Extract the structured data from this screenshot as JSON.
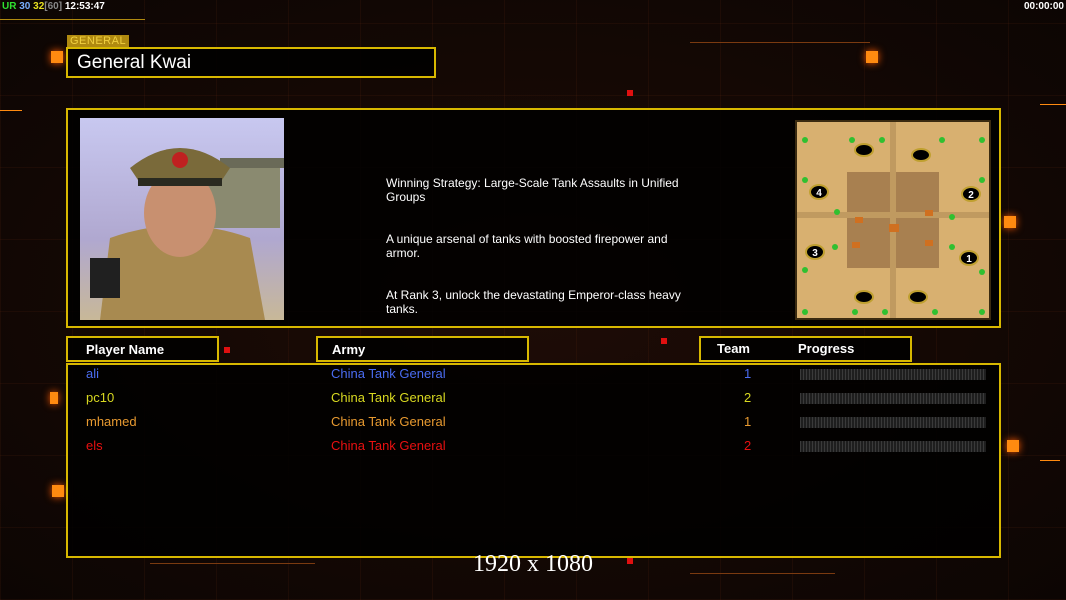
{
  "hud": {
    "ur": "UR",
    "v1": "30",
    "v2": "32",
    "v3": "[60]",
    "clock": "12:53:47",
    "timer": "00:00:00"
  },
  "general": {
    "tag": "GENERAL",
    "name": "General Kwai"
  },
  "description": [
    "Winning Strategy: Large-Scale Tank Assaults in Unified\n Groups",
    "A unique arsenal of tanks with boosted firepower and\n armor.",
    "At Rank 3, unlock the devastating Emperor-class heavy\n tanks."
  ],
  "map": {
    "start_positions": [
      "1",
      "2",
      "3",
      "4"
    ]
  },
  "table": {
    "headers": {
      "player": "Player Name",
      "army": "Army",
      "team": "Team",
      "progress": "Progress"
    },
    "rows": [
      {
        "player": "ali",
        "army": "China Tank General",
        "team": "1",
        "color": "#4a6cf0",
        "progress": 0
      },
      {
        "player": "pc10",
        "army": "China Tank General",
        "team": "2",
        "color": "#d8d820",
        "progress": 0
      },
      {
        "player": "mhamed",
        "army": "China Tank General",
        "team": "1",
        "color": "#e89a30",
        "progress": 0
      },
      {
        "player": "els",
        "army": "China Tank General",
        "team": "2",
        "color": "#e81010",
        "progress": 0
      }
    ]
  },
  "resolution": "1920 x 1080"
}
